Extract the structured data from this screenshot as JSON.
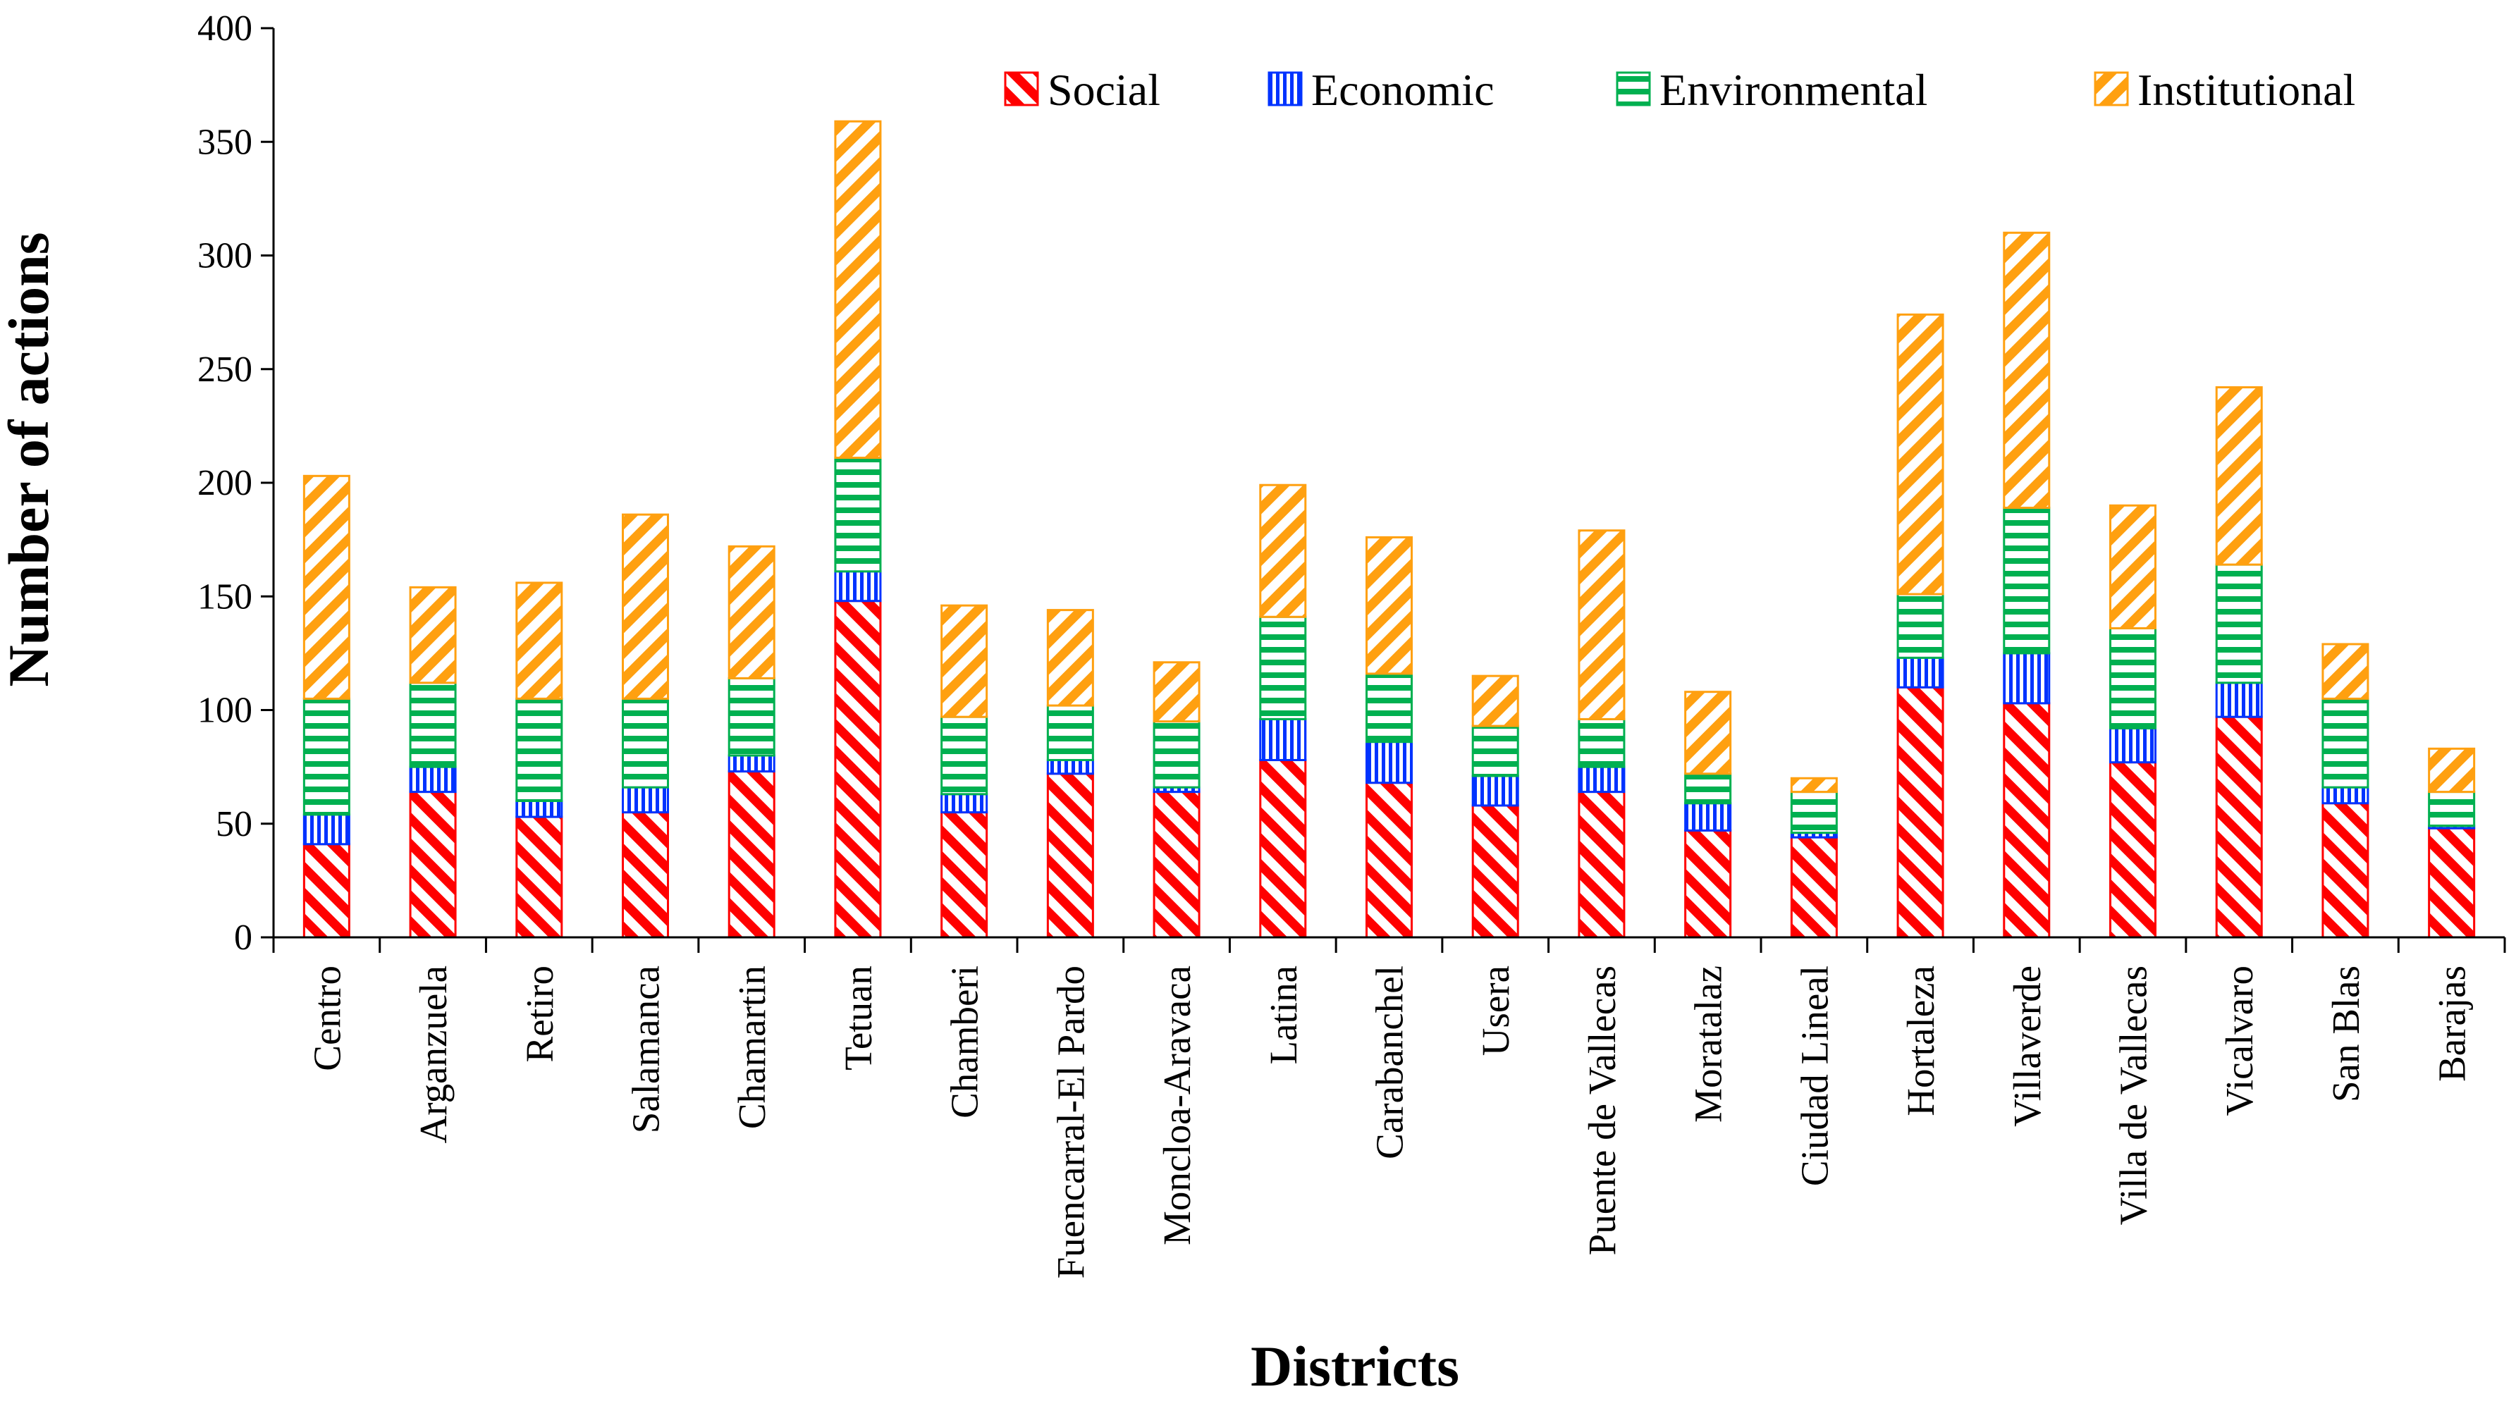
{
  "chart_data": {
    "type": "bar",
    "stacked": true,
    "title": "",
    "xlabel": "Districts",
    "ylabel": "Number of actions",
    "ylim": [
      0,
      400
    ],
    "yticks": [
      0,
      50,
      100,
      150,
      200,
      250,
      300,
      350,
      400
    ],
    "legend_position": "top-right",
    "grid": false,
    "categories": [
      "Centro",
      "Arganzuela",
      "Retiro",
      "Salamanca",
      "Chamartin",
      "Tetuan",
      "Chamberi",
      "Fuencarral-El Pardo",
      "Moncloa-Aravaca",
      "Latina",
      "Carabanchel",
      "Usera",
      "Puente de Vallecas",
      "Moratalaz",
      "Ciudad Lineal",
      "Hortaleza",
      "Villaverde",
      "Villa de Vallecas",
      "Vicalvaro",
      "San Blas",
      "Barajas"
    ],
    "series": [
      {
        "name": "Social",
        "color": "#ff0000",
        "pattern": "diagonal-back",
        "values": [
          41,
          64,
          53,
          55,
          73,
          148,
          55,
          72,
          64,
          78,
          68,
          58,
          64,
          47,
          44,
          110,
          103,
          77,
          97,
          59,
          48
        ]
      },
      {
        "name": "Economic",
        "color": "#0033ff",
        "pattern": "vertical",
        "values": [
          13,
          11,
          7,
          11,
          7,
          13,
          8,
          6,
          2,
          18,
          18,
          13,
          11,
          12,
          2,
          13,
          22,
          15,
          15,
          7,
          1
        ]
      },
      {
        "name": "Environmental",
        "color": "#00b050",
        "pattern": "horizontal",
        "values": [
          51,
          37,
          45,
          39,
          34,
          50,
          34,
          24,
          29,
          45,
          30,
          22,
          21,
          13,
          18,
          28,
          64,
          44,
          52,
          39,
          15
        ]
      },
      {
        "name": "Institutional",
        "color": "#ffa010",
        "pattern": "diagonal-forward",
        "values": [
          98,
          42,
          51,
          81,
          58,
          148,
          49,
          42,
          26,
          58,
          60,
          22,
          83,
          36,
          6,
          123,
          121,
          54,
          78,
          24,
          19
        ]
      }
    ]
  }
}
